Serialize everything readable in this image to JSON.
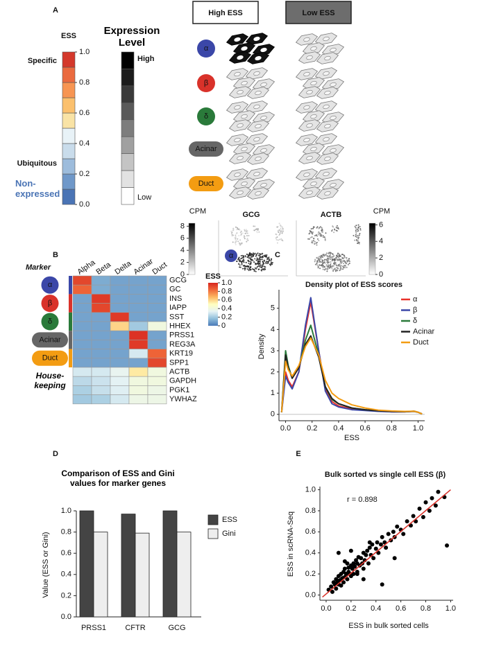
{
  "panel_labels": [
    "A",
    "B",
    "C",
    "D",
    "E"
  ],
  "ess_legend": {
    "title": "ESS",
    "colors": [
      "#4a74b5",
      "#6f98c9",
      "#9dbcdc",
      "#c9dceb",
      "#e8f2f7",
      "#f9e3a5",
      "#fbc06d",
      "#f79552",
      "#ea6a3f",
      "#d4382b"
    ],
    "lim": [
      0,
      1
    ],
    "ticks": [
      {
        "value": 0,
        "label": "0.0"
      },
      {
        "value": 0.2,
        "label": "0.2"
      },
      {
        "value": 0.4,
        "label": "0.4"
      },
      {
        "value": 0.6,
        "label": "0.6"
      },
      {
        "value": 0.8,
        "label": "0.8"
      },
      {
        "value": 1,
        "label": "1.0"
      }
    ],
    "specific": "Specific",
    "ubiquitous": "Ubiquitous",
    "non_expressed": "Non-expressed"
  },
  "expression_legend": {
    "title": "Expression Level",
    "high": "High",
    "low": "Low",
    "colors": [
      "#000000",
      "#1c1c1c",
      "#3a3a3a",
      "#5a5a5a",
      "#7d7d7d",
      "#a0a0a0",
      "#c4c4c4",
      "#e2e2e2",
      "#ffffff"
    ]
  },
  "cell_diagram": {
    "headers": [
      "High ESS",
      "Low ESS"
    ],
    "cell_types": [
      {
        "label": "α",
        "color": "#3b47a8"
      },
      {
        "label": "β",
        "color": "#d9322a"
      },
      {
        "label": "δ",
        "color": "#2a7a3a"
      },
      {
        "label": "Acinar",
        "color": "#666666"
      },
      {
        "label": "Duct",
        "color": "#f39c12"
      }
    ]
  },
  "umap": {
    "unit": "CPM",
    "cluster_label": "α",
    "panels": [
      {
        "gene": "GCG",
        "lim": [
          0,
          8.5
        ],
        "ticks": [
          0,
          2,
          4,
          6,
          8
        ]
      },
      {
        "gene": "ACTB",
        "lim": [
          0,
          6.2
        ],
        "ticks": [
          0,
          2,
          4,
          6
        ]
      }
    ]
  },
  "chart_data": [
    {
      "type": "heatmap",
      "columns": [
        "Alpha",
        "Beta",
        "Delta",
        "Acinar",
        "Duct"
      ],
      "rows": [
        "GCG",
        "GC",
        "INS",
        "IAPP",
        "SST",
        "HHEX",
        "PRSS1",
        "REG3A",
        "KRT19",
        "SPP1",
        "ACTB",
        "GAPDH",
        "PGK1",
        "YWHAZ"
      ],
      "values": [
        [
          0.92,
          0.12,
          0.1,
          0.1,
          0.1
        ],
        [
          0.85,
          0.12,
          0.1,
          0.1,
          0.1
        ],
        [
          0.1,
          0.95,
          0.1,
          0.1,
          0.1
        ],
        [
          0.1,
          0.92,
          0.1,
          0.1,
          0.1
        ],
        [
          0.1,
          0.1,
          0.95,
          0.1,
          0.1
        ],
        [
          0.1,
          0.1,
          0.6,
          0.2,
          0.4
        ],
        [
          0.1,
          0.1,
          0.1,
          0.97,
          0.1
        ],
        [
          0.1,
          0.1,
          0.1,
          0.95,
          0.1
        ],
        [
          0.1,
          0.1,
          0.1,
          0.3,
          0.85
        ],
        [
          0.1,
          0.1,
          0.1,
          0.1,
          0.92
        ],
        [
          0.3,
          0.3,
          0.35,
          0.55,
          0.4
        ],
        [
          0.25,
          0.28,
          0.33,
          0.4,
          0.4
        ],
        [
          0.22,
          0.27,
          0.32,
          0.4,
          0.38
        ],
        [
          0.2,
          0.22,
          0.3,
          0.38,
          0.38
        ]
      ],
      "colorscale": [
        "#4a7ab8",
        "#91bfdb",
        "#e6f3f5",
        "#ffffbf",
        "#fdb863",
        "#f06a3a",
        "#d7261f"
      ],
      "colorbar": {
        "title": "ESS",
        "lim": [
          0,
          1
        ],
        "ticks": [
          0,
          {
            "value": 0.2,
            "label": "0.2"
          },
          {
            "value": 0.4,
            "label": "0.4"
          },
          {
            "value": 0.6,
            "label": "0.6"
          },
          {
            "value": 0.8,
            "label": "0.8"
          },
          {
            "value": 1,
            "label": "1.0"
          }
        ]
      },
      "marker_label": "Marker",
      "housekeeping_label": "House-keeping",
      "groups": [
        {
          "label": "α",
          "color": "#3b47a8"
        },
        {
          "label": "β",
          "color": "#d9322a"
        },
        {
          "label": "δ",
          "color": "#2a7a3a"
        },
        {
          "label": "Acinar",
          "color": "#666666"
        },
        {
          "label": "Duct",
          "color": "#f39c12"
        }
      ]
    },
    {
      "type": "line",
      "title": "Density plot of ESS scores",
      "xlabel": "ESS",
      "ylabel": "Density",
      "x": [
        -0.03,
        0,
        0.02,
        0.05,
        0.1,
        0.15,
        0.19,
        0.25,
        0.3,
        0.35,
        0.4,
        0.5,
        0.6,
        0.7,
        0.8,
        0.9,
        0.97,
        1.0,
        1.03
      ],
      "series": [
        {
          "name": "α",
          "color": "#e8312a",
          "values": [
            0.1,
            2.0,
            1.6,
            1.3,
            2.0,
            4.0,
            5.3,
            3.0,
            1.2,
            0.6,
            0.4,
            0.25,
            0.2,
            0.15,
            0.12,
            0.12,
            0.15,
            0.1,
            0.02
          ]
        },
        {
          "name": "β",
          "color": "#3b47a8",
          "values": [
            0.1,
            1.8,
            1.5,
            1.2,
            2.0,
            4.2,
            5.5,
            3.0,
            1.1,
            0.5,
            0.35,
            0.22,
            0.18,
            0.14,
            0.12,
            0.12,
            0.14,
            0.1,
            0.02
          ]
        },
        {
          "name": "δ",
          "color": "#2a7a3a",
          "values": [
            0.1,
            3.0,
            2.3,
            1.7,
            2.2,
            3.5,
            4.2,
            2.8,
            1.3,
            0.7,
            0.5,
            0.3,
            0.22,
            0.17,
            0.14,
            0.13,
            0.15,
            0.1,
            0.02
          ]
        },
        {
          "name": "Acinar",
          "color": "#222222",
          "values": [
            0.1,
            2.8,
            2.2,
            1.7,
            2.2,
            3.3,
            3.7,
            2.7,
            1.3,
            0.75,
            0.5,
            0.3,
            0.22,
            0.17,
            0.14,
            0.13,
            0.14,
            0.1,
            0.02
          ]
        },
        {
          "name": "Duct",
          "color": "#f39c12",
          "values": [
            0.1,
            2.5,
            2.1,
            1.8,
            2.3,
            3.2,
            3.6,
            2.8,
            1.6,
            1.0,
            0.75,
            0.45,
            0.3,
            0.2,
            0.16,
            0.14,
            0.15,
            0.1,
            0.02
          ]
        }
      ],
      "xlim": [
        -0.05,
        1.05
      ],
      "ylim": [
        -0.3,
        6.2
      ],
      "xticks": [
        {
          "value": 0,
          "label": "0.0"
        },
        {
          "value": 0.2,
          "label": "0.2"
        },
        {
          "value": 0.4,
          "label": "0.4"
        },
        {
          "value": 0.6,
          "label": "0.6"
        },
        {
          "value": 0.8,
          "label": "0.8"
        },
        {
          "value": 1,
          "label": "1.0"
        }
      ],
      "yticks": [
        0,
        1,
        2,
        3,
        4,
        5
      ],
      "legend": "upper right"
    },
    {
      "type": "bar",
      "title": "Comparison of ESS and Gini values for marker genes",
      "ylabel": "Value (ESS or Gini)",
      "categories": [
        "PRSS1",
        "CFTR",
        "GCG"
      ],
      "series": [
        {
          "name": "ESS",
          "color": "#444444",
          "values": [
            1.0,
            0.97,
            1.0
          ]
        },
        {
          "name": "Gini",
          "color": "#eeeeee",
          "values": [
            0.8,
            0.79,
            0.8
          ]
        }
      ],
      "ylim": [
        0,
        1.05
      ],
      "yticks": [
        {
          "value": 0,
          "label": "0.0"
        },
        {
          "value": 0.2,
          "label": "0.2"
        },
        {
          "value": 0.4,
          "label": "0.4"
        },
        {
          "value": 0.6,
          "label": "0.6"
        },
        {
          "value": 0.8,
          "label": "0.8"
        },
        {
          "value": 1,
          "label": "1.0"
        }
      ],
      "legend": "right"
    },
    {
      "type": "scatter",
      "title": "Bulk sorted vs single cell ESS (β)",
      "annotation": "r = 0.898",
      "xlabel": "ESS in bulk sorted cells",
      "ylabel": "ESS in scRNA-Seq",
      "color": "#000000",
      "x": [
        0.02,
        0.04,
        0.05,
        0.06,
        0.07,
        0.08,
        0.08,
        0.09,
        0.1,
        0.1,
        0.11,
        0.12,
        0.12,
        0.13,
        0.14,
        0.14,
        0.15,
        0.15,
        0.16,
        0.17,
        0.17,
        0.18,
        0.18,
        0.19,
        0.2,
        0.2,
        0.21,
        0.22,
        0.22,
        0.23,
        0.24,
        0.25,
        0.25,
        0.26,
        0.27,
        0.28,
        0.29,
        0.3,
        0.3,
        0.31,
        0.32,
        0.33,
        0.34,
        0.35,
        0.36,
        0.37,
        0.38,
        0.4,
        0.41,
        0.42,
        0.44,
        0.45,
        0.47,
        0.48,
        0.5,
        0.52,
        0.54,
        0.55,
        0.57,
        0.6,
        0.62,
        0.65,
        0.68,
        0.7,
        0.72,
        0.75,
        0.78,
        0.8,
        0.83,
        0.85,
        0.88,
        0.9,
        0.95,
        0.97,
        0.1,
        0.2,
        0.3,
        0.15,
        0.25,
        0.35,
        0.55,
        0.45
      ],
      "y": [
        0.05,
        0.08,
        0.03,
        0.12,
        0.1,
        0.15,
        0.06,
        0.12,
        0.18,
        0.1,
        0.14,
        0.2,
        0.09,
        0.16,
        0.22,
        0.12,
        0.25,
        0.17,
        0.2,
        0.15,
        0.3,
        0.22,
        0.26,
        0.2,
        0.28,
        0.18,
        0.25,
        0.3,
        0.2,
        0.27,
        0.33,
        0.22,
        0.3,
        0.36,
        0.28,
        0.35,
        0.3,
        0.4,
        0.25,
        0.33,
        0.38,
        0.42,
        0.3,
        0.45,
        0.38,
        0.48,
        0.35,
        0.44,
        0.5,
        0.4,
        0.48,
        0.55,
        0.5,
        0.45,
        0.58,
        0.52,
        0.6,
        0.55,
        0.65,
        0.62,
        0.58,
        0.7,
        0.66,
        0.75,
        0.7,
        0.82,
        0.74,
        0.88,
        0.8,
        0.92,
        0.85,
        0.98,
        0.93,
        0.47,
        0.4,
        0.42,
        0.15,
        0.32,
        0.2,
        0.5,
        0.35,
        0.1
      ],
      "fit_line": {
        "color": "#d9322a",
        "x": [
          -0.03,
          1.0
        ],
        "y": [
          -0.02,
          1.0
        ]
      },
      "xlim": [
        -0.05,
        1.02
      ],
      "ylim": [
        -0.05,
        1.03
      ],
      "xticks": [
        {
          "value": 0,
          "label": "0.0"
        },
        {
          "value": 0.2,
          "label": "0.2"
        },
        {
          "value": 0.4,
          "label": "0.4"
        },
        {
          "value": 0.6,
          "label": "0.6"
        },
        {
          "value": 0.8,
          "label": "0.8"
        },
        {
          "value": 1,
          "label": "1.0"
        }
      ],
      "yticks": [
        {
          "value": 0,
          "label": "0.0"
        },
        {
          "value": 0.2,
          "label": "0.2"
        },
        {
          "value": 0.4,
          "label": "0.4"
        },
        {
          "value": 0.6,
          "label": "0.6"
        },
        {
          "value": 0.8,
          "label": "0.8"
        },
        {
          "value": 1,
          "label": "1.0"
        }
      ]
    }
  ]
}
